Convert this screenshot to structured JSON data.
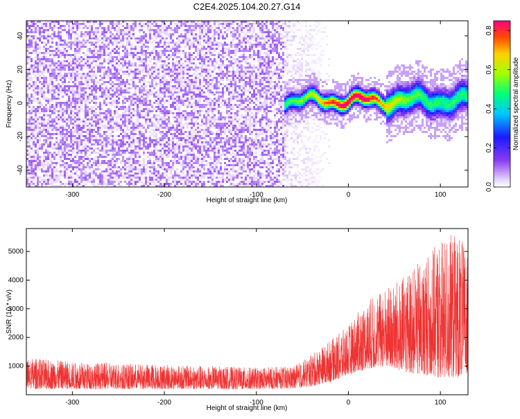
{
  "title": "C2E4.2025.104.20.27.G14",
  "colors": {
    "snr_line": "#ee3333",
    "axis": "#000000",
    "background": "#ffffff"
  },
  "chart_data": [
    {
      "type": "heatmap",
      "xlabel": "Height of straight line (km)",
      "ylabel": "Frequency (Hz)",
      "xlim": [
        -350,
        130
      ],
      "ylim": [
        -50,
        49
      ],
      "x_ticks": [
        -300,
        -200,
        -100,
        0,
        100
      ],
      "y_ticks": [
        -40,
        -20,
        0,
        20,
        40
      ],
      "colorbar": {
        "label": "Normalized spectral amplitude",
        "range": [
          0,
          0.85
        ],
        "ticks": [
          0.0,
          0.2,
          0.4,
          0.6,
          0.8
        ],
        "colormap": "rainbow (white-violet-blue-cyan-green-yellow-red)"
      },
      "regions": [
        {
          "name": "noise",
          "x_range": [
            -350,
            -70
          ],
          "freq_range": [
            -50,
            49
          ],
          "amplitude": 0.08
        },
        {
          "name": "fading noise",
          "x_range": [
            -70,
            -30
          ],
          "freq_range": [
            -50,
            49
          ],
          "amplitude": 0.03
        },
        {
          "name": "signal",
          "x_range": [
            -70,
            130
          ],
          "center_freq": 2,
          "freq_halfwidth": 6,
          "peak_amplitude": 0.85,
          "peak_x": 5
        }
      ]
    },
    {
      "type": "line",
      "xlabel": "Height of straight line (km)",
      "ylabel": "SNR (10 * v/v)",
      "xlim": [
        -350,
        130
      ],
      "ylim": [
        0,
        5800
      ],
      "x_ticks": [
        -300,
        -200,
        -100,
        0,
        100
      ],
      "y_ticks": [
        1000,
        2000,
        3000,
        4000,
        5000
      ],
      "envelope": {
        "x": [
          -350,
          -300,
          -200,
          -100,
          -60,
          -40,
          -20,
          0,
          20,
          40,
          60,
          80,
          100,
          120,
          130
        ],
        "y_min": [
          200,
          200,
          200,
          200,
          220,
          300,
          450,
          700,
          900,
          1000,
          800,
          700,
          600,
          600,
          700
        ],
        "y_max": [
          1300,
          1150,
          1050,
          950,
          1000,
          1400,
          1900,
          2400,
          3300,
          3700,
          4100,
          4700,
          5400,
          5700,
          4800
        ]
      }
    }
  ]
}
